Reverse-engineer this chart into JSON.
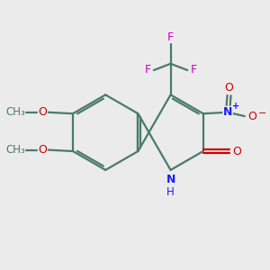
{
  "background_color": "#ebebeb",
  "bond_color": "#4a7a6a",
  "bond_width": 1.6,
  "atom_colors": {
    "N": "#1a1aff",
    "O": "#cc0000",
    "F": "#cc00cc",
    "N_ring": "#1a1aff"
  },
  "figsize": [
    3.0,
    3.0
  ],
  "dpi": 100,
  "xlim": [
    0,
    10
  ],
  "ylim": [
    0,
    10
  ]
}
